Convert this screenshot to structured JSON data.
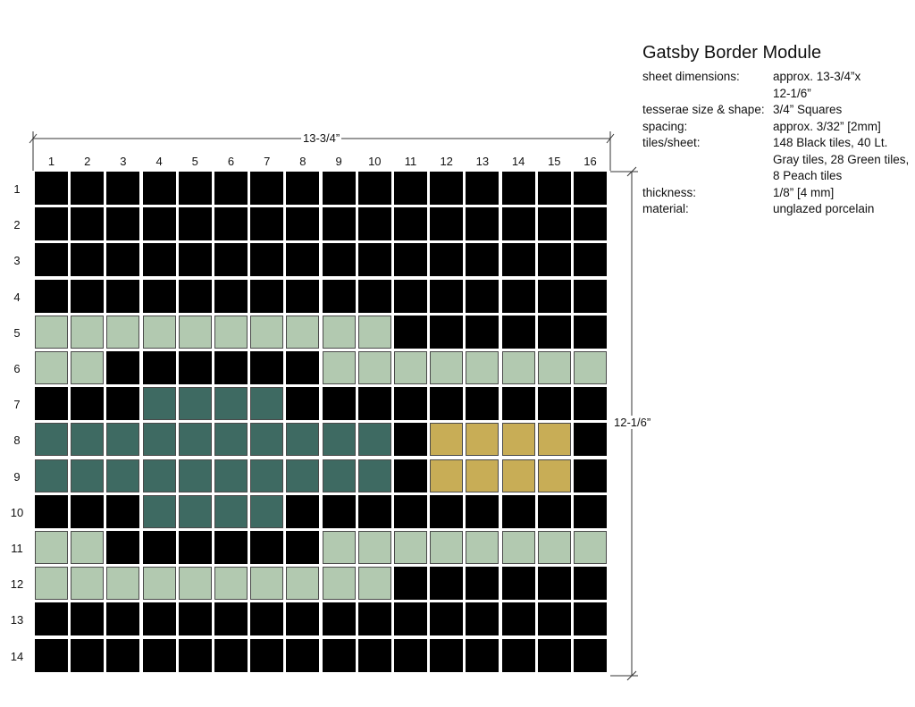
{
  "title": "Gatsby Border Module",
  "specs": [
    {
      "label": "sheet dimensions:",
      "lines": [
        "approx. 13-3/4”x",
        "12-1/6”"
      ]
    },
    {
      "label": "tesserae size & shape:",
      "lines": [
        "3/4” Squares"
      ]
    },
    {
      "label": "spacing:",
      "lines": [
        "approx. 3/32” [2mm]"
      ]
    },
    {
      "label": "tiles/sheet:",
      "lines": [
        "148 Black tiles, 40 Lt.",
        "Gray tiles, 28 Green tiles,",
        "8 Peach tiles"
      ]
    },
    {
      "label": "thickness:",
      "lines": [
        "1/8” [4 mm]"
      ]
    },
    {
      "label": "material:",
      "lines": [
        "unglazed porcelain"
      ]
    }
  ],
  "dimensions": {
    "width_label": "13-3/4”",
    "height_label": "12-1/6”"
  },
  "columns": [
    "1",
    "2",
    "3",
    "4",
    "5",
    "6",
    "7",
    "8",
    "9",
    "10",
    "11",
    "12",
    "13",
    "14",
    "15",
    "16"
  ],
  "rows": [
    "1",
    "2",
    "3",
    "4",
    "5",
    "6",
    "7",
    "8",
    "9",
    "10",
    "11",
    "12",
    "13",
    "14"
  ],
  "colors": {
    "B": "#000000",
    "L": "#b2c9b0",
    "G": "#3e6a62",
    "P": "#c8ad56"
  },
  "grid": [
    "BBBBBBBBBBBBBBBB",
    "BBBBBBBBBBBBBBBB",
    "BBBBBBBBBBBBBBBB",
    "BBBBBBBBBBBBBBBB",
    "LLLLLLLLLLBBBBBB",
    "LLBBBBBBLLLLLLLL",
    "BBBGGGGBBBBBBBBB",
    "GGGGGGGGGGBPPPPB",
    "GGGGGGGGGGBPPPPB",
    "BBBGGGGBBBBBBBBB",
    "LLBBBBBBLLLLLLLL",
    "LLLLLLLLLLBBBBBB",
    "BBBBBBBBBBBBBBBB",
    "BBBBBBBBBBBBBBBB"
  ]
}
